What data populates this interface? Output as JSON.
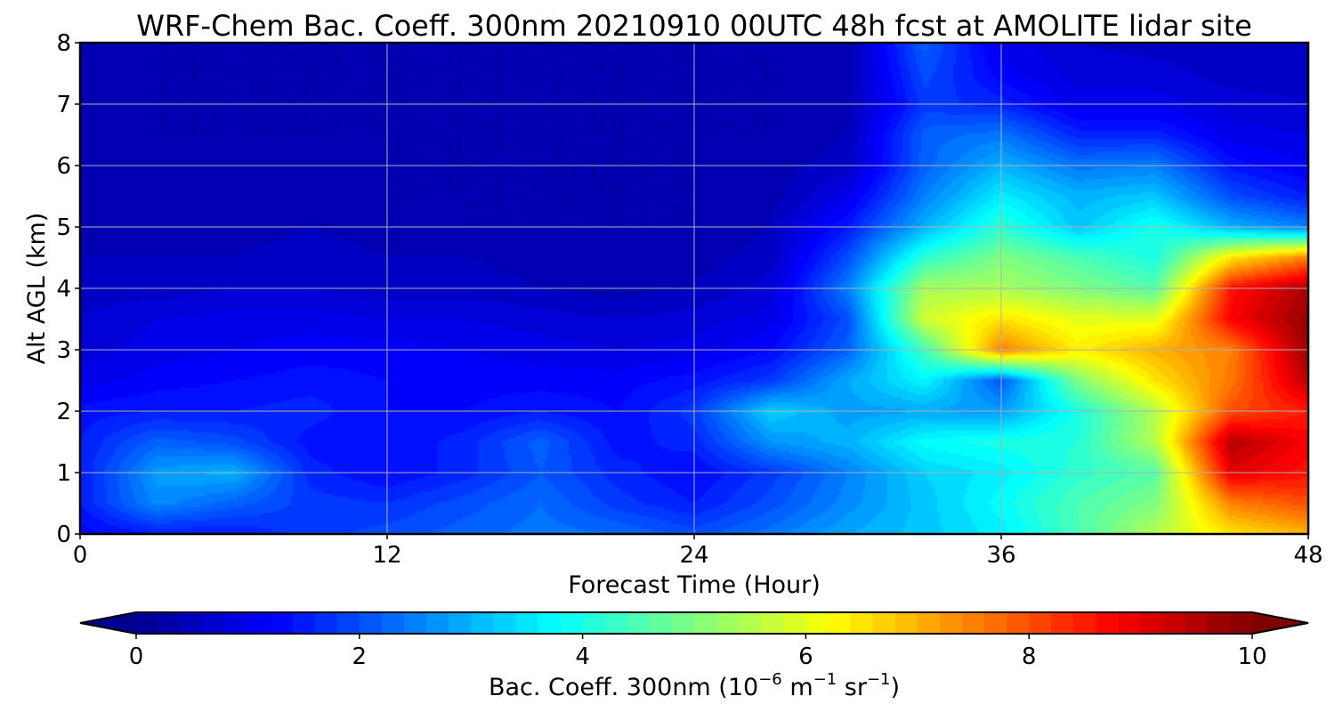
{
  "chart_data": {
    "type": "heatmap",
    "title": "WRF-Chem Bac. Coeff. 300nm  20210910 00UTC 48h fcst at AMOLITE lidar site",
    "xlabel": "Forecast Time (Hour)",
    "ylabel": "Alt AGL (km)",
    "xlim": [
      0,
      48
    ],
    "ylim": [
      0,
      8
    ],
    "xticks": [
      "0",
      "12",
      "24",
      "36",
      "48"
    ],
    "yticks": [
      "0",
      "1",
      "2",
      "3",
      "4",
      "5",
      "6",
      "7",
      "8"
    ],
    "grid": true,
    "colormap": "jet",
    "colorbar": {
      "label": "Bac. Coeff. 300nm  (10⁻⁶ m⁻¹ sr⁻¹)",
      "label_parts": {
        "main": "Bac. Coeff. 300nm  (10",
        "exp1": "−6",
        "mid1": " m",
        "exp2": "−1",
        "mid2": " sr",
        "exp3": "−1",
        "end": ")"
      },
      "range": [
        0,
        10
      ],
      "ticks": [
        "0",
        "2",
        "4",
        "6",
        "8",
        "10"
      ],
      "extend": "both",
      "colors": [
        "#00008f",
        "#0000ff",
        "#0080ff",
        "#00ffff",
        "#80ff80",
        "#ffff00",
        "#ff8000",
        "#ff0000",
        "#800000"
      ]
    },
    "x_hours": [
      0,
      3,
      6,
      9,
      12,
      15,
      18,
      21,
      24,
      27,
      30,
      33,
      36,
      39,
      42,
      45,
      48
    ],
    "y_km": [
      0,
      0.5,
      1,
      1.5,
      2,
      2.5,
      3,
      3.5,
      4,
      4.5,
      5,
      5.5,
      6,
      6.5,
      7,
      7.5,
      8
    ],
    "values": [
      [
        1.2,
        1.5,
        1.5,
        1.8,
        2.0,
        2.2,
        2.4,
        2.3,
        2.0,
        2.4,
        2.9,
        3.2,
        3.6,
        4.5,
        5.5,
        6.5,
        7.0
      ],
      [
        1.5,
        2.6,
        2.2,
        1.8,
        1.7,
        2.0,
        2.3,
        1.8,
        1.5,
        2.0,
        2.6,
        3.2,
        3.8,
        4.5,
        5.0,
        7.5,
        8.0
      ],
      [
        1.5,
        2.8,
        3.0,
        1.6,
        1.3,
        1.6,
        2.1,
        1.6,
        1.3,
        1.8,
        2.5,
        3.3,
        3.6,
        4.2,
        4.6,
        9.0,
        8.6
      ],
      [
        1.5,
        2.2,
        2.0,
        1.4,
        1.3,
        1.6,
        2.2,
        1.4,
        1.6,
        2.7,
        3.0,
        3.8,
        4.0,
        4.1,
        5.5,
        9.5,
        8.8
      ],
      [
        1.4,
        1.5,
        1.5,
        1.6,
        1.3,
        1.3,
        1.5,
        1.3,
        1.8,
        3.3,
        2.8,
        2.9,
        2.8,
        4.0,
        5.5,
        8.0,
        8.5
      ],
      [
        1.0,
        1.2,
        1.3,
        1.4,
        1.3,
        1.2,
        1.2,
        1.2,
        1.4,
        1.8,
        2.9,
        3.7,
        2.1,
        5.0,
        6.5,
        7.6,
        9.4
      ],
      [
        0.8,
        1.0,
        1.1,
        1.2,
        1.2,
        1.1,
        1.0,
        0.9,
        1.0,
        1.3,
        2.2,
        4.4,
        7.5,
        6.4,
        7.0,
        7.5,
        9.8
      ],
      [
        0.7,
        0.9,
        1.0,
        1.0,
        0.9,
        0.9,
        0.8,
        0.7,
        0.8,
        1.0,
        2.0,
        5.8,
        6.5,
        6.0,
        6.0,
        8.8,
        9.8
      ],
      [
        0.6,
        0.6,
        0.7,
        0.7,
        0.6,
        0.6,
        0.5,
        0.4,
        0.5,
        0.8,
        2.5,
        5.4,
        5.4,
        5.0,
        4.6,
        8.6,
        9.6
      ],
      [
        0.5,
        0.5,
        0.5,
        0.6,
        0.5,
        0.5,
        0.4,
        0.3,
        0.4,
        0.6,
        2.0,
        4.2,
        5.0,
        4.5,
        4.0,
        6.5,
        7.5
      ],
      [
        0.5,
        0.4,
        0.4,
        0.5,
        0.4,
        0.3,
        0.3,
        0.3,
        0.3,
        0.5,
        1.5,
        3.0,
        4.2,
        3.2,
        4.0,
        3.0,
        2.5
      ],
      [
        0.4,
        0.4,
        0.3,
        0.4,
        0.3,
        0.3,
        0.3,
        0.3,
        0.3,
        0.4,
        1.0,
        2.5,
        3.6,
        3.0,
        3.2,
        2.0,
        1.5
      ],
      [
        0.4,
        0.4,
        0.3,
        0.4,
        0.3,
        0.3,
        0.3,
        0.3,
        0.3,
        0.4,
        0.6,
        2.2,
        3.0,
        2.4,
        2.5,
        1.4,
        1.1
      ],
      [
        0.4,
        0.3,
        0.3,
        0.3,
        0.3,
        0.3,
        0.3,
        0.3,
        0.3,
        0.3,
        0.5,
        2.2,
        2.4,
        1.6,
        1.6,
        1.0,
        0.9
      ],
      [
        0.4,
        0.3,
        0.3,
        0.3,
        0.3,
        0.3,
        0.3,
        0.3,
        0.3,
        0.3,
        0.4,
        1.8,
        1.6,
        1.0,
        1.0,
        0.8,
        0.7
      ],
      [
        0.4,
        0.3,
        0.3,
        0.3,
        0.3,
        0.3,
        0.3,
        0.3,
        0.3,
        0.3,
        0.4,
        2.0,
        1.2,
        0.8,
        0.8,
        0.6,
        0.6
      ],
      [
        0.4,
        0.3,
        0.3,
        0.3,
        0.3,
        0.3,
        0.3,
        0.3,
        0.3,
        0.3,
        0.4,
        2.2,
        1.0,
        0.7,
        0.6,
        0.5,
        0.5
      ]
    ]
  }
}
